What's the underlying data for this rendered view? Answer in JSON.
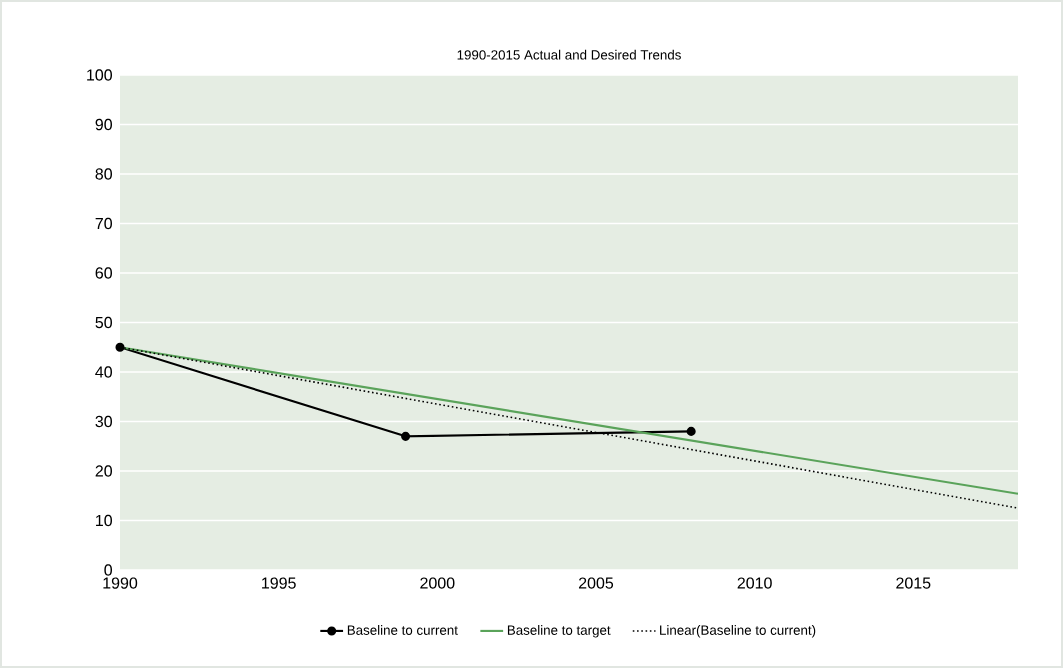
{
  "chart_data": {
    "type": "line",
    "title": "1990-2015 Actual and Desired Trends",
    "series": [
      {
        "name": "Baseline to current",
        "color": "#000000",
        "x": [
          1990,
          1999,
          2008
        ],
        "values": [
          45,
          27,
          28
        ],
        "marker": "circle",
        "line_style": "solid"
      },
      {
        "name": "Baseline to target",
        "color": "#5aa35a",
        "x": [
          1990,
          2018.3
        ],
        "values": [
          45,
          15.4
        ],
        "marker": "none",
        "line_style": "solid"
      },
      {
        "name": "Linear(Baseline to current)",
        "color": "#000000",
        "x": [
          1990,
          2018.3
        ],
        "values": [
          45,
          12.5
        ],
        "marker": "none",
        "line_style": "dotted"
      }
    ],
    "xlim": [
      1990,
      2018.3
    ],
    "ylim": [
      0,
      100
    ],
    "xticks": [
      1990,
      1995,
      2000,
      2005,
      2010,
      2015
    ],
    "yticks": [
      0,
      10,
      20,
      30,
      40,
      50,
      60,
      70,
      80,
      90,
      100
    ],
    "grid": "y",
    "legend": "bottom"
  }
}
